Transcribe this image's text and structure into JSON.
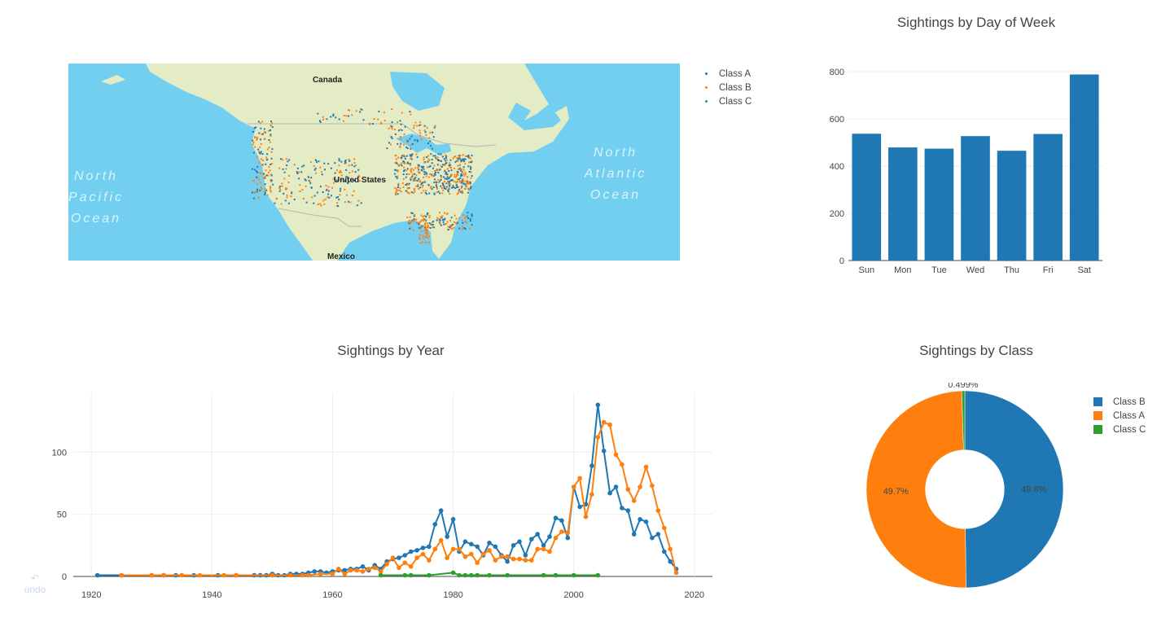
{
  "map": {
    "labels": {
      "canada": "Canada",
      "usa": "United States",
      "mexico": "Mexico"
    },
    "ocean_labels": {
      "north_pacific": [
        "North",
        "Pacific",
        "Ocean"
      ],
      "north_atlantic": [
        "North",
        "Atlantic",
        "Ocean"
      ]
    },
    "legend": [
      {
        "name": "Class A",
        "color": "#1f77b4"
      },
      {
        "name": "Class B",
        "color": "#ff7f0e"
      },
      {
        "name": "Class C",
        "color": "#2ca02c"
      }
    ],
    "colors": {
      "ocean": "#73cff0",
      "land": "#e4ecc5"
    }
  },
  "pie_legend": [
    {
      "name": "Class B",
      "color": "#1f77b4"
    },
    {
      "name": "Class A",
      "color": "#ff7f0e"
    },
    {
      "name": "Class C",
      "color": "#2ca02c"
    }
  ],
  "modebar": {
    "undo_icon": "undo-icon",
    "undo_label": "undo"
  },
  "chart_data": [
    {
      "type": "bar",
      "title": "Sightings by Day of Week",
      "categories": [
        "Sun",
        "Mon",
        "Tue",
        "Wed",
        "Thu",
        "Fri",
        "Sat"
      ],
      "values": [
        537,
        479,
        474,
        527,
        465,
        536,
        788
      ],
      "ylim": [
        0,
        800
      ],
      "yticks": [
        0,
        200,
        400,
        600,
        800
      ],
      "color": "#1f77b4",
      "grid": true
    },
    {
      "type": "line",
      "title": "Sightings by Year",
      "xlim": [
        1917,
        2023
      ],
      "ylim": [
        0,
        148
      ],
      "xticks": [
        1920,
        1940,
        1960,
        1980,
        2000,
        2020
      ],
      "yticks": [
        0,
        50,
        100
      ],
      "grid": true,
      "series": [
        {
          "name": "Class B",
          "color": "#1f77b4",
          "points": [
            [
              1921,
              1
            ],
            [
              1925,
              1
            ],
            [
              1930,
              1
            ],
            [
              1932,
              1
            ],
            [
              1934,
              1
            ],
            [
              1937,
              1
            ],
            [
              1941,
              1
            ],
            [
              1944,
              1
            ],
            [
              1947,
              1
            ],
            [
              1948,
              1
            ],
            [
              1949,
              1
            ],
            [
              1950,
              2
            ],
            [
              1951,
              1
            ],
            [
              1952,
              1
            ],
            [
              1953,
              2
            ],
            [
              1954,
              2
            ],
            [
              1955,
              2
            ],
            [
              1956,
              3
            ],
            [
              1957,
              4
            ],
            [
              1958,
              4
            ],
            [
              1959,
              3
            ],
            [
              1960,
              4
            ],
            [
              1961,
              5
            ],
            [
              1962,
              5
            ],
            [
              1963,
              6
            ],
            [
              1964,
              6
            ],
            [
              1965,
              8
            ],
            [
              1966,
              5
            ],
            [
              1967,
              9
            ],
            [
              1968,
              6
            ],
            [
              1969,
              12
            ],
            [
              1970,
              14
            ],
            [
              1971,
              15
            ],
            [
              1972,
              17
            ],
            [
              1973,
              20
            ],
            [
              1974,
              21
            ],
            [
              1975,
              23
            ],
            [
              1976,
              24
            ],
            [
              1977,
              42
            ],
            [
              1978,
              53
            ],
            [
              1979,
              32
            ],
            [
              1980,
              46
            ],
            [
              1981,
              20
            ],
            [
              1982,
              28
            ],
            [
              1983,
              26
            ],
            [
              1984,
              24
            ],
            [
              1985,
              17
            ],
            [
              1986,
              27
            ],
            [
              1987,
              24
            ],
            [
              1988,
              17
            ],
            [
              1989,
              12
            ],
            [
              1990,
              25
            ],
            [
              1991,
              28
            ],
            [
              1992,
              17
            ],
            [
              1993,
              30
            ],
            [
              1994,
              34
            ],
            [
              1995,
              25
            ],
            [
              1996,
              32
            ],
            [
              1997,
              47
            ],
            [
              1998,
              45
            ],
            [
              1999,
              31
            ],
            [
              2000,
              72
            ],
            [
              2001,
              56
            ],
            [
              2002,
              58
            ],
            [
              2003,
              89
            ],
            [
              2004,
              138
            ],
            [
              2005,
              101
            ],
            [
              2006,
              67
            ],
            [
              2007,
              72
            ],
            [
              2008,
              55
            ],
            [
              2009,
              53
            ],
            [
              2010,
              34
            ],
            [
              2011,
              46
            ],
            [
              2012,
              44
            ],
            [
              2013,
              31
            ],
            [
              2014,
              34
            ],
            [
              2015,
              20
            ],
            [
              2016,
              12
            ],
            [
              2017,
              6
            ]
          ]
        },
        {
          "name": "Class A",
          "color": "#ff7f0e",
          "points": [
            [
              1925,
              1
            ],
            [
              1930,
              1
            ],
            [
              1932,
              1
            ],
            [
              1935,
              1
            ],
            [
              1938,
              1
            ],
            [
              1942,
              1
            ],
            [
              1944,
              1
            ],
            [
              1950,
              1
            ],
            [
              1953,
              1
            ],
            [
              1955,
              1
            ],
            [
              1956,
              1
            ],
            [
              1958,
              2
            ],
            [
              1960,
              2
            ],
            [
              1961,
              6
            ],
            [
              1962,
              2
            ],
            [
              1963,
              5
            ],
            [
              1964,
              5
            ],
            [
              1965,
              4
            ],
            [
              1966,
              6
            ],
            [
              1967,
              7
            ],
            [
              1968,
              4
            ],
            [
              1969,
              10
            ],
            [
              1970,
              15
            ],
            [
              1971,
              7
            ],
            [
              1972,
              11
            ],
            [
              1973,
              8
            ],
            [
              1974,
              15
            ],
            [
              1975,
              18
            ],
            [
              1976,
              13
            ],
            [
              1977,
              22
            ],
            [
              1978,
              29
            ],
            [
              1979,
              15
            ],
            [
              1980,
              22
            ],
            [
              1981,
              22
            ],
            [
              1982,
              16
            ],
            [
              1983,
              18
            ],
            [
              1984,
              11
            ],
            [
              1985,
              18
            ],
            [
              1986,
              21
            ],
            [
              1987,
              13
            ],
            [
              1988,
              16
            ],
            [
              1989,
              16
            ],
            [
              1990,
              14
            ],
            [
              1991,
              14
            ],
            [
              1992,
              13
            ],
            [
              1993,
              13
            ],
            [
              1994,
              22
            ],
            [
              1995,
              22
            ],
            [
              1996,
              20
            ],
            [
              1997,
              31
            ],
            [
              1998,
              36
            ],
            [
              1999,
              35
            ],
            [
              2000,
              72
            ],
            [
              2001,
              79
            ],
            [
              2002,
              48
            ],
            [
              2003,
              66
            ],
            [
              2004,
              112
            ],
            [
              2005,
              124
            ],
            [
              2006,
              122
            ],
            [
              2007,
              98
            ],
            [
              2008,
              90
            ],
            [
              2009,
              70
            ],
            [
              2010,
              61
            ],
            [
              2011,
              72
            ],
            [
              2012,
              88
            ],
            [
              2013,
              73
            ],
            [
              2014,
              53
            ],
            [
              2015,
              39
            ],
            [
              2016,
              22
            ],
            [
              2017,
              3
            ]
          ]
        },
        {
          "name": "Class C",
          "color": "#2ca02c",
          "points": [
            [
              1968,
              1
            ],
            [
              1972,
              1
            ],
            [
              1973,
              1
            ],
            [
              1976,
              1
            ],
            [
              1980,
              3
            ],
            [
              1981,
              1
            ],
            [
              1982,
              1
            ],
            [
              1983,
              1
            ],
            [
              1984,
              1
            ],
            [
              1986,
              1
            ],
            [
              1989,
              1
            ],
            [
              1995,
              1
            ],
            [
              1997,
              1
            ],
            [
              2000,
              1
            ],
            [
              2004,
              1
            ]
          ]
        }
      ]
    },
    {
      "type": "pie",
      "title": "Sightings by Class",
      "hole": 0.4,
      "slices": [
        {
          "name": "Class B",
          "label": "49.8%",
          "value": 49.8,
          "color": "#1f77b4"
        },
        {
          "name": "Class A",
          "label": "49.7%",
          "value": 49.7,
          "color": "#ff7f0e"
        },
        {
          "name": "Class C",
          "label": "0.499%",
          "value": 0.499,
          "color": "#2ca02c"
        }
      ]
    }
  ]
}
